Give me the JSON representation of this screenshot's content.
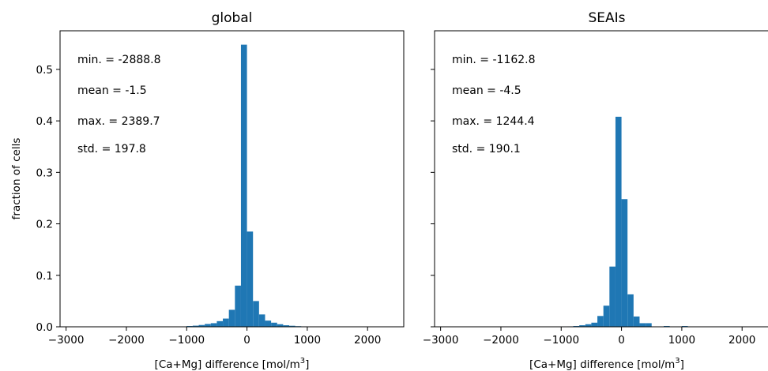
{
  "chart_data": [
    {
      "type": "bar",
      "title": "global",
      "xlabel": "[Ca+Mg] difference [mol/m",
      "xlabel_sup": "3",
      "xlabel_close": "]",
      "ylabel": "fraction of cells",
      "xlim": [
        -3100,
        2600
      ],
      "ylim": [
        0,
        0.575
      ],
      "xticks": [
        -3000,
        -2000,
        -1000,
        0,
        1000,
        2000
      ],
      "xtick_labels": [
        "−3000",
        "−2000",
        "−1000",
        "0",
        "1000",
        "2000"
      ],
      "yticks": [
        0.0,
        0.1,
        0.2,
        0.3,
        0.4,
        0.5
      ],
      "ytick_labels": [
        "0.0",
        "0.1",
        "0.2",
        "0.3",
        "0.4",
        "0.5"
      ],
      "bin_width": 100,
      "bins": [
        {
          "x0": -1000,
          "x1": -900,
          "value": 0.0015
        },
        {
          "x0": -900,
          "x1": -800,
          "value": 0.0022
        },
        {
          "x0": -800,
          "x1": -700,
          "value": 0.0035
        },
        {
          "x0": -700,
          "x1": -600,
          "value": 0.0055
        },
        {
          "x0": -600,
          "x1": -500,
          "value": 0.007
        },
        {
          "x0": -500,
          "x1": -400,
          "value": 0.011
        },
        {
          "x0": -400,
          "x1": -300,
          "value": 0.016
        },
        {
          "x0": -300,
          "x1": -200,
          "value": 0.033
        },
        {
          "x0": -200,
          "x1": -100,
          "value": 0.08
        },
        {
          "x0": -100,
          "x1": 0,
          "value": 0.548
        },
        {
          "x0": 0,
          "x1": 100,
          "value": 0.185
        },
        {
          "x0": 100,
          "x1": 200,
          "value": 0.05
        },
        {
          "x0": 200,
          "x1": 300,
          "value": 0.024
        },
        {
          "x0": 300,
          "x1": 400,
          "value": 0.012
        },
        {
          "x0": 400,
          "x1": 500,
          "value": 0.008
        },
        {
          "x0": 500,
          "x1": 600,
          "value": 0.005
        },
        {
          "x0": 600,
          "x1": 700,
          "value": 0.003
        },
        {
          "x0": 700,
          "x1": 800,
          "value": 0.002
        },
        {
          "x0": 800,
          "x1": 900,
          "value": 0.0012
        },
        {
          "x0": 900,
          "x1": 1000,
          "value": 0.0008
        },
        {
          "x0": 1000,
          "x1": 1100,
          "value": 0.0005
        }
      ],
      "color": "#1f77b4",
      "annotations": [
        "min. = -2888.8",
        "mean = -1.5",
        "max. = 2389.7",
        "std. = 197.8"
      ]
    },
    {
      "type": "bar",
      "title": "SEAIs",
      "xlabel": "[Ca+Mg] difference [mol/m",
      "xlabel_sup": "3",
      "xlabel_close": "]",
      "ylabel": "",
      "xlim": [
        -3100,
        2600
      ],
      "ylim": [
        0,
        0.575
      ],
      "xticks": [
        -3000,
        -2000,
        -1000,
        0,
        1000,
        2000
      ],
      "xtick_labels": [
        "−3000",
        "−2000",
        "−1000",
        "0",
        "1000",
        "2000"
      ],
      "yticks": [
        0.0,
        0.1,
        0.2,
        0.3,
        0.4,
        0.5
      ],
      "ytick_labels": [],
      "bin_width": 100,
      "bins": [
        {
          "x0": -900,
          "x1": -800,
          "value": 0.0008
        },
        {
          "x0": -800,
          "x1": -700,
          "value": 0.0015
        },
        {
          "x0": -700,
          "x1": -600,
          "value": 0.003
        },
        {
          "x0": -600,
          "x1": -500,
          "value": 0.005
        },
        {
          "x0": -500,
          "x1": -400,
          "value": 0.008
        },
        {
          "x0": -400,
          "x1": -300,
          "value": 0.021
        },
        {
          "x0": -300,
          "x1": -200,
          "value": 0.041
        },
        {
          "x0": -200,
          "x1": -100,
          "value": 0.117
        },
        {
          "x0": -100,
          "x1": 0,
          "value": 0.408
        },
        {
          "x0": 0,
          "x1": 100,
          "value": 0.248
        },
        {
          "x0": 100,
          "x1": 200,
          "value": 0.063
        },
        {
          "x0": 200,
          "x1": 300,
          "value": 0.02
        },
        {
          "x0": 300,
          "x1": 400,
          "value": 0.007
        },
        {
          "x0": 400,
          "x1": 500,
          "value": 0.007
        },
        {
          "x0": 700,
          "x1": 800,
          "value": 0.0015
        },
        {
          "x0": 1000,
          "x1": 1100,
          "value": 0.0015
        }
      ],
      "color": "#1f77b4",
      "annotations": [
        "min. = -1162.8",
        "mean = -4.5",
        "max. = 1244.4",
        "std. = 190.1"
      ]
    }
  ]
}
